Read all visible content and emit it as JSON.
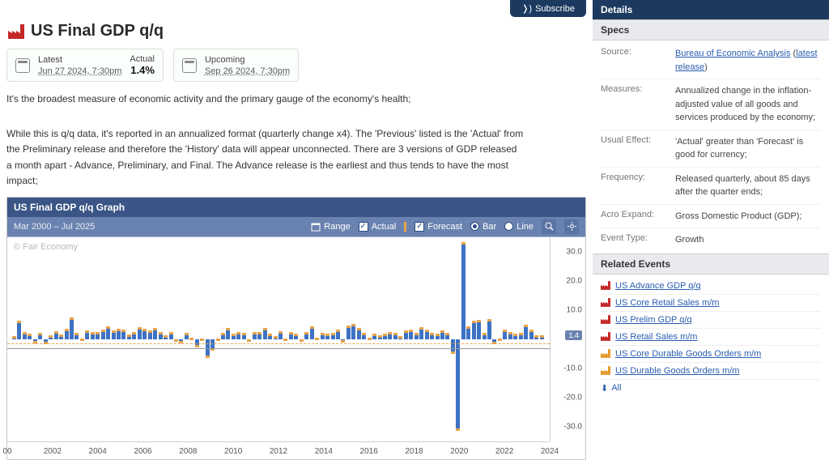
{
  "topbar": {
    "subscribe": "Subscribe"
  },
  "header": {
    "icon_color": "#c62828",
    "title": "US Final GDP q/q"
  },
  "cards": {
    "latest": {
      "label": "Latest",
      "date": "Jun 27 2024, 7:30pm",
      "actual_label": "Actual",
      "actual": "1.4%"
    },
    "upcoming": {
      "label": "Upcoming",
      "date": "Sep 26 2024, 7:30pm"
    }
  },
  "description": {
    "p1": "It's the broadest measure of economic activity and the primary gauge of the economy's health;",
    "p2": "While this is q/q data, it's reported in an annualized format (quarterly change x4). The 'Previous' listed is the 'Actual' from the Preliminary release and therefore the 'History' data will appear unconnected. There are 3 versions of GDP released a month apart - Advance, Preliminary, and Final. The Advance release is the earliest and thus tends to have the most impact;"
  },
  "graph": {
    "title": "US Final GDP q/q Graph",
    "range": "Mar 2000 – Jul 2025",
    "range_btn": "Range",
    "actual": "Actual",
    "forecast": "Forecast",
    "bar": "Bar",
    "line": "Line",
    "watermark": "© Fair Economy",
    "ref_value": "1.4",
    "colors": {
      "bar_fill": "#3d72c4",
      "cap_fill": "#e7a34a",
      "toolbar_bg": "#6a82af",
      "header_bg": "#3a5586",
      "grid": "#cfcfcf",
      "ref_line": "#e7a34a"
    },
    "y": {
      "min": -35,
      "max": 35,
      "ticks": [
        -30,
        -20,
        -10,
        0,
        10,
        20,
        30
      ],
      "labels": [
        "-30.0",
        "-20.0",
        "-10.0",
        "",
        "10.0",
        "20.0",
        "30.0"
      ]
    },
    "x_labels": [
      "00",
      "2002",
      "2004",
      "2006",
      "2008",
      "2010",
      "2012",
      "2014",
      "2016",
      "2018",
      "2020",
      "2022",
      "2024"
    ],
    "series": [
      1.2,
      6.4,
      2.4,
      1.9,
      -1.3,
      2.1,
      -1.6,
      1.3,
      2.7,
      1.6,
      3.5,
      7.5,
      2.2,
      0.2,
      3.1,
      2.6,
      2.4,
      3.3,
      4.3,
      3.0,
      3.5,
      3.3,
      1.6,
      2.6,
      4.2,
      3.6,
      3.1,
      3.8,
      2.6,
      1.3,
      2.4,
      0.1,
      -1.3,
      2.1,
      0.5,
      -2.7,
      -0.7,
      -6.3,
      -4.0,
      -0.7,
      2.2,
      3.9,
      2.0,
      2.5,
      2.3,
      0.1,
      2.5,
      2.6,
      4.0,
      2.0,
      1.2,
      2.8,
      0.4,
      2.5,
      1.8,
      0.1,
      2.6,
      4.5,
      0.5,
      2.1,
      2.0,
      2.2,
      3.2,
      -1.2,
      4.6,
      5.2,
      3.9,
      2.2,
      0.6,
      2.0,
      1.4,
      1.8,
      2.6,
      2.2,
      1.2,
      3.1,
      3.2,
      2.2,
      4.2,
      3.4,
      2.2,
      2.0,
      3.1,
      2.1,
      -5.0,
      -31.4,
      33.4,
      4.3,
      6.3,
      6.7,
      2.3,
      6.9,
      -1.6,
      -0.6,
      3.2,
      2.6,
      2.0,
      2.1,
      4.9,
      3.4,
      1.4,
      1.4
    ]
  },
  "details": {
    "header": "Details",
    "specs_header": "Specs",
    "specs": {
      "source_k": "Source:",
      "source_link": "Bureau of Economic Analysis",
      "source_paren": "latest release",
      "measures_k": "Measures:",
      "measures_v": "Annualized change in the inflation-adjusted value of all goods and services produced by the economy;",
      "usual_k": "Usual Effect:",
      "usual_v": "'Actual' greater than 'Forecast' is good for currency;",
      "freq_k": "Frequency:",
      "freq_v": "Released quarterly, about 85 days after the quarter ends;",
      "acro_k": "Acro Expand:",
      "acro_v": "Gross Domestic Product (GDP);",
      "event_k": "Event Type:",
      "event_v": "Growth"
    },
    "related_header": "Related Events",
    "related": [
      {
        "label": "US Advance GDP q/q",
        "color": "#c62828"
      },
      {
        "label": "US Core Retail Sales m/m",
        "color": "#c62828"
      },
      {
        "label": "US Prelim GDP q/q",
        "color": "#c62828"
      },
      {
        "label": "US Retail Sales m/m",
        "color": "#c62828"
      },
      {
        "label": "US Core Durable Goods Orders m/m",
        "color": "#e29a2e"
      },
      {
        "label": "US Durable Goods Orders m/m",
        "color": "#e29a2e"
      }
    ],
    "all": "All"
  }
}
